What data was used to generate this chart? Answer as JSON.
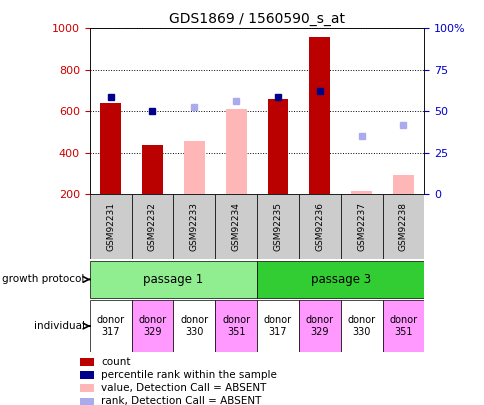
{
  "title": "GDS1869 / 1560590_s_at",
  "samples": [
    "GSM92231",
    "GSM92232",
    "GSM92233",
    "GSM92234",
    "GSM92235",
    "GSM92236",
    "GSM92237",
    "GSM92238"
  ],
  "count_values": [
    640,
    440,
    null,
    null,
    660,
    960,
    null,
    null
  ],
  "count_absent_values": [
    null,
    null,
    455,
    610,
    null,
    null,
    215,
    295
  ],
  "percentile_present": [
    670,
    600,
    null,
    null,
    670,
    700,
    null,
    null
  ],
  "percentile_absent": [
    null,
    null,
    620,
    650,
    null,
    null,
    480,
    535
  ],
  "growth_protocol": [
    {
      "label": "passage 1",
      "start": 0,
      "end": 4,
      "color": "#90ee90"
    },
    {
      "label": "passage 3",
      "start": 4,
      "end": 8,
      "color": "#32cd32"
    }
  ],
  "individual_colors": [
    "#ffffff",
    "#ff99ff",
    "#ffffff",
    "#ff99ff",
    "#ffffff",
    "#ff99ff",
    "#ffffff",
    "#ff99ff"
  ],
  "individual_labels": [
    "donor\n317",
    "donor\n329",
    "donor\n330",
    "donor\n351",
    "donor\n317",
    "donor\n329",
    "donor\n330",
    "donor\n351"
  ],
  "ylim_left": [
    200,
    1000
  ],
  "ylim_right": [
    0,
    100
  ],
  "left_ticks": [
    200,
    400,
    600,
    800,
    1000
  ],
  "right_ticks": [
    0,
    25,
    50,
    75,
    100
  ],
  "bar_width": 0.5,
  "color_count": "#bb0000",
  "color_count_absent": "#ffb6b6",
  "color_percentile": "#00008b",
  "color_percentile_absent": "#aaaaee",
  "left_tick_color": "#cc0000",
  "right_tick_color": "#0000cc",
  "sample_band_color": "#cccccc",
  "legend_items": [
    {
      "color": "#bb0000",
      "label": "count"
    },
    {
      "color": "#00008b",
      "label": "percentile rank within the sample"
    },
    {
      "color": "#ffb6b6",
      "label": "value, Detection Call = ABSENT"
    },
    {
      "color": "#aaaaee",
      "label": "rank, Detection Call = ABSENT"
    }
  ]
}
